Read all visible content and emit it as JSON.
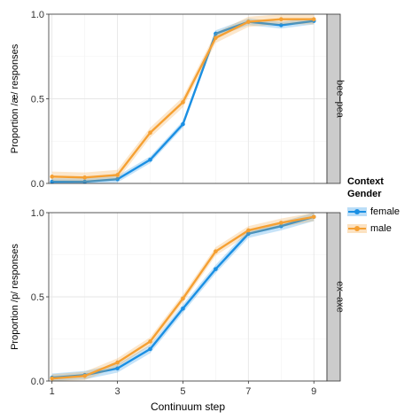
{
  "chart_data": {
    "type": "line",
    "xlabel": "Continuum step",
    "x": [
      1,
      2,
      3,
      4,
      5,
      6,
      7,
      8,
      9
    ],
    "xticks": [
      "1",
      "3",
      "5",
      "7",
      "9"
    ],
    "xlim": [
      0.9,
      9.4
    ],
    "ylim": [
      0,
      1
    ],
    "yticks": [
      "0.0",
      "0.5",
      "1.0"
    ],
    "grid": true,
    "legend": {
      "title": [
        "Context",
        "Gender"
      ],
      "position": "right",
      "entries": [
        "female",
        "male"
      ]
    },
    "colors": {
      "female": "#1a8fe3",
      "male": "#f5a033"
    },
    "panels": [
      {
        "strip": "bee–pea",
        "ylabel": "Proportion /æ/ responses",
        "series": [
          {
            "name": "female",
            "values": [
              0.01,
              0.01,
              0.025,
              0.14,
              0.35,
              0.885,
              0.955,
              0.935,
              0.96
            ],
            "band": 0.02
          },
          {
            "name": "male",
            "values": [
              0.04,
              0.035,
              0.05,
              0.3,
              0.48,
              0.86,
              0.955,
              0.97,
              0.97
            ],
            "band": 0.03
          }
        ]
      },
      {
        "strip": "ex–axe",
        "ylabel": "Proportion /p/ responses",
        "series": [
          {
            "name": "female",
            "values": [
              0.02,
              0.035,
              0.075,
              0.19,
              0.43,
              0.665,
              0.875,
              0.92,
              0.975
            ],
            "band": 0.025
          },
          {
            "name": "male",
            "values": [
              0.015,
              0.03,
              0.11,
              0.235,
              0.49,
              0.77,
              0.895,
              0.94,
              0.975
            ],
            "band": 0.025
          }
        ]
      }
    ]
  }
}
